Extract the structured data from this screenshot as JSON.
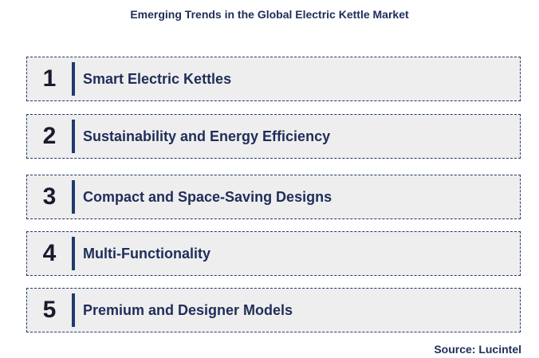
{
  "title": "Emerging Trends in the Global Electric Kettle Market",
  "items": [
    {
      "number": "1",
      "label": "Smart Electric Kettles"
    },
    {
      "number": "2",
      "label": "Sustainability and Energy Efficiency"
    },
    {
      "number": "3",
      "label": "Compact and Space-Saving Designs"
    },
    {
      "number": "4",
      "label": "Multi-Functionality"
    },
    {
      "number": "5",
      "label": "Premium and Designer Models"
    }
  ],
  "source": "Source: Lucintel",
  "colors": {
    "text": "#1f2d5a",
    "accent_bar": "#1f3a6e",
    "box_fill": "#eeeeee"
  }
}
